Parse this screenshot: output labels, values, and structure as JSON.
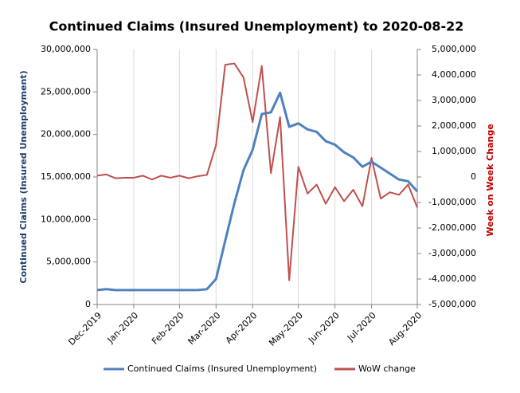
{
  "chart_data": {
    "type": "line",
    "title": "Continued Claims (Insured Unemployment) to 2020-08-22",
    "ylabel": "Continued Claims  (Insured Unemployment)",
    "y2label": "Week on Week Change",
    "categories": [
      "Dec-2019",
      null,
      null,
      null,
      "Jan-2020",
      null,
      null,
      null,
      null,
      "Feb-2020",
      null,
      null,
      null,
      "Mar-2020",
      null,
      null,
      null,
      "Apr-2020",
      null,
      null,
      null,
      null,
      "May-2020",
      null,
      null,
      null,
      "Jun-2020",
      null,
      null,
      null,
      "Jul-2020",
      null,
      null,
      null,
      null,
      "Aug-2020"
    ],
    "series": [
      {
        "name": "Continued Claims (Insured Unemployment)",
        "color": "#4f81bd",
        "axis": "y",
        "values": [
          1700000,
          1800000,
          1700000,
          1700000,
          1700000,
          1700000,
          1700000,
          1700000,
          1700000,
          1700000,
          1700000,
          1700000,
          1800000,
          3000000,
          7500000,
          11900000,
          15800000,
          18200000,
          22400000,
          22600000,
          24900000,
          20900000,
          21300000,
          20600000,
          20300000,
          19200000,
          18800000,
          17900000,
          17300000,
          16200000,
          16800000,
          16100000,
          15400000,
          14700000,
          14500000,
          13300000
        ]
      },
      {
        "name": "WoW change",
        "color": "#c0504d",
        "axis": "y2",
        "values": [
          50000,
          100000,
          -50000,
          -30000,
          -30000,
          50000,
          -100000,
          50000,
          -30000,
          50000,
          -50000,
          30000,
          80000,
          1250000,
          4400000,
          4450000,
          3900000,
          2150000,
          4350000,
          150000,
          2350000,
          -4050000,
          400000,
          -650000,
          -300000,
          -1050000,
          -400000,
          -950000,
          -500000,
          -1150000,
          750000,
          -850000,
          -600000,
          -700000,
          -300000,
          -1200000
        ]
      }
    ],
    "ylim": [
      0,
      30000000
    ],
    "yticks": [
      0,
      {
        "value": 5000000,
        "label": "5,000,000"
      },
      {
        "value": 10000000,
        "label": "10,000,000"
      },
      {
        "value": 15000000,
        "label": "15,000,000"
      },
      {
        "value": 20000000,
        "label": "20,000,000"
      },
      {
        "value": 25000000,
        "label": "25,000,000"
      },
      {
        "value": 30000000,
        "label": "30,000,000"
      }
    ],
    "y2lim": [
      -5000000,
      5000000
    ],
    "y2ticks": [
      {
        "value": -5000000,
        "label": "-5,000,000"
      },
      {
        "value": -4000000,
        "label": "-4,000,000"
      },
      {
        "value": -3000000,
        "label": "-3,000,000"
      },
      {
        "value": -2000000,
        "label": "-2,000,000"
      },
      {
        "value": -1000000,
        "label": "-1,000,000"
      },
      0,
      {
        "value": 1000000,
        "label": "1,000,000"
      },
      {
        "value": 2000000,
        "label": "2,000,000"
      },
      {
        "value": 3000000,
        "label": "3,000,000"
      },
      {
        "value": 4000000,
        "label": "4,000,000"
      },
      {
        "value": 5000000,
        "label": "5,000,000"
      }
    ],
    "xgrid": true,
    "legend": "bottom"
  }
}
